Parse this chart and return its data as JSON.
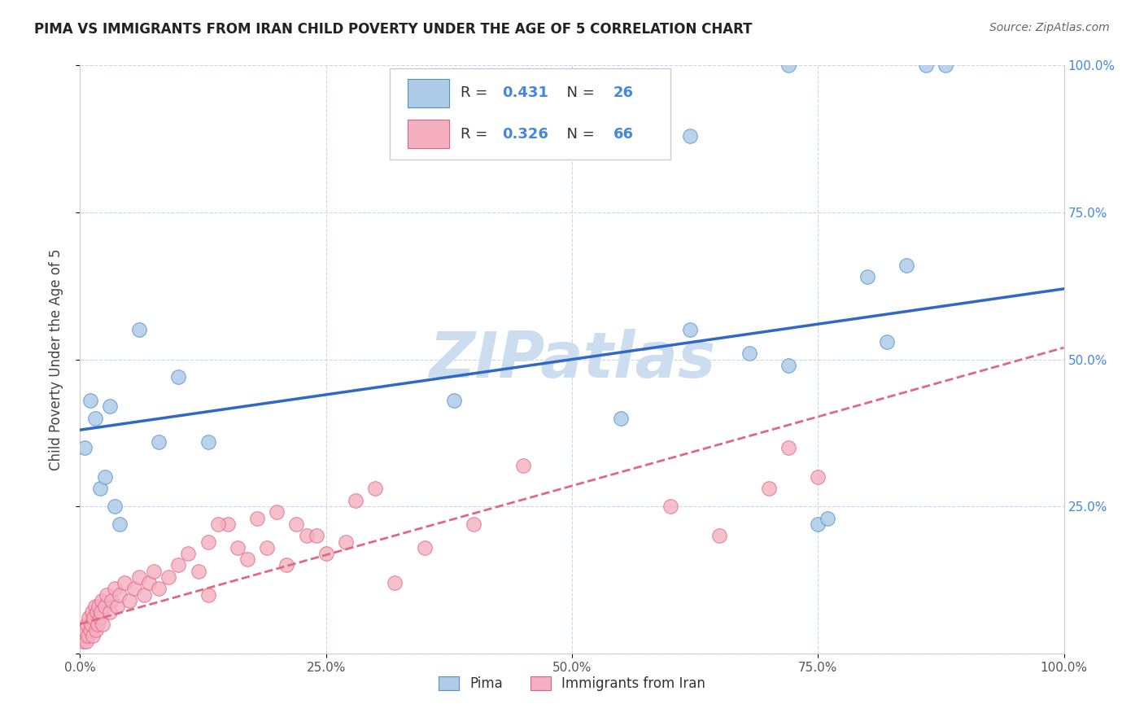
{
  "title": "PIMA VS IMMIGRANTS FROM IRAN CHILD POVERTY UNDER THE AGE OF 5 CORRELATION CHART",
  "source": "Source: ZipAtlas.com",
  "ylabel": "Child Poverty Under the Age of 5",
  "xlim": [
    0,
    1
  ],
  "ylim": [
    0,
    1
  ],
  "xtick_labels": [
    "0.0%",
    "25.0%",
    "50.0%",
    "75.0%",
    "100.0%"
  ],
  "xtick_vals": [
    0,
    0.25,
    0.5,
    0.75,
    1.0
  ],
  "right_ytick_labels": [
    "25.0%",
    "50.0%",
    "75.0%",
    "100.0%"
  ],
  "right_ytick_vals": [
    0.25,
    0.5,
    0.75,
    1.0
  ],
  "pima_color": "#aecce8",
  "iran_color": "#f4afc0",
  "pima_edge_color": "#5090d0",
  "iran_edge_color": "#e06080",
  "pima_line_color": "#3068c8",
  "iran_line_color": "#e06880",
  "pima_R": 0.431,
  "pima_N": 26,
  "iran_R": 0.326,
  "iran_N": 66,
  "legend_color": "#4488dd",
  "watermark_text": "ZIPatlas",
  "watermark_color": "#ccddf0",
  "grid_color": "#c8d8e8",
  "pima_intercept": 0.38,
  "pima_slope": 0.24,
  "iran_intercept": 0.05,
  "iran_slope": 0.47,
  "pima_x": [
    0.005,
    0.01,
    0.015,
    0.02,
    0.025,
    0.03,
    0.035,
    0.04,
    0.06,
    0.08,
    0.1,
    0.13,
    0.38,
    0.55,
    0.62,
    0.68,
    0.72,
    0.75,
    0.76,
    0.8,
    0.82,
    0.84,
    0.86,
    0.88,
    0.62,
    0.72
  ],
  "pima_y": [
    0.35,
    0.43,
    0.4,
    0.28,
    0.3,
    0.42,
    0.25,
    0.22,
    0.55,
    0.36,
    0.47,
    0.36,
    0.43,
    0.4,
    0.55,
    0.51,
    0.49,
    0.22,
    0.23,
    0.64,
    0.53,
    0.66,
    1.0,
    1.0,
    0.88,
    1.0
  ],
  "iran_x": [
    0.003,
    0.004,
    0.005,
    0.006,
    0.007,
    0.008,
    0.009,
    0.01,
    0.011,
    0.012,
    0.013,
    0.014,
    0.015,
    0.016,
    0.017,
    0.018,
    0.019,
    0.02,
    0.021,
    0.022,
    0.023,
    0.025,
    0.027,
    0.03,
    0.032,
    0.035,
    0.038,
    0.04,
    0.045,
    0.05,
    0.055,
    0.06,
    0.065,
    0.07,
    0.075,
    0.08,
    0.09,
    0.1,
    0.11,
    0.12,
    0.13,
    0.15,
    0.17,
    0.19,
    0.21,
    0.23,
    0.25,
    0.27,
    0.13,
    0.14,
    0.16,
    0.18,
    0.2,
    0.22,
    0.24,
    0.28,
    0.3,
    0.32,
    0.35,
    0.4,
    0.45,
    0.6,
    0.65,
    0.7,
    0.72,
    0.75
  ],
  "iran_y": [
    0.02,
    0.03,
    0.04,
    0.02,
    0.05,
    0.03,
    0.06,
    0.04,
    0.05,
    0.07,
    0.03,
    0.06,
    0.08,
    0.04,
    0.07,
    0.05,
    0.08,
    0.06,
    0.07,
    0.09,
    0.05,
    0.08,
    0.1,
    0.07,
    0.09,
    0.11,
    0.08,
    0.1,
    0.12,
    0.09,
    0.11,
    0.13,
    0.1,
    0.12,
    0.14,
    0.11,
    0.13,
    0.15,
    0.17,
    0.14,
    0.1,
    0.22,
    0.16,
    0.18,
    0.15,
    0.2,
    0.17,
    0.19,
    0.19,
    0.22,
    0.18,
    0.23,
    0.24,
    0.22,
    0.2,
    0.26,
    0.28,
    0.12,
    0.18,
    0.22,
    0.32,
    0.25,
    0.2,
    0.28,
    0.35,
    0.3
  ]
}
